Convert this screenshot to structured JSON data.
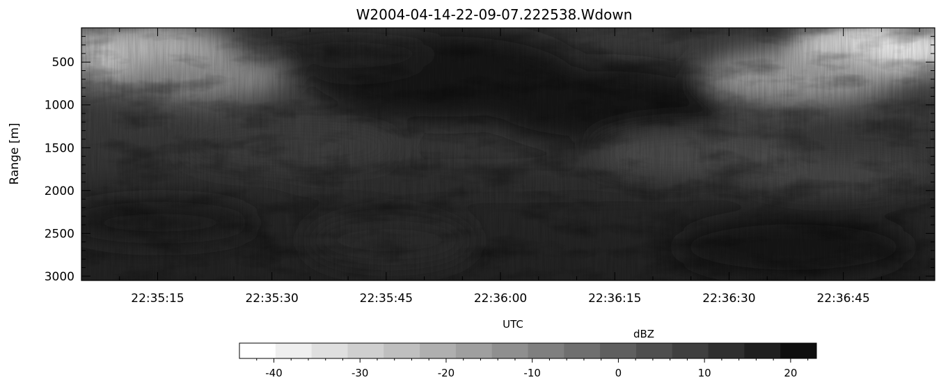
{
  "chart_data": {
    "type": "heatmap",
    "title": "W2004-04-14-22-09-07.222538.Wdown",
    "xlabel": "UTC",
    "ylabel": "Range [m]",
    "x_ticks": [
      "22:35:15",
      "22:35:30",
      "22:35:45",
      "22:36:00",
      "22:36:15",
      "22:36:30",
      "22:36:45"
    ],
    "x_tick_seconds": [
      15,
      30,
      45,
      60,
      75,
      90,
      105
    ],
    "x_range_seconds": [
      5,
      117
    ],
    "y_ticks": [
      500,
      1000,
      1500,
      2000,
      2500,
      3000
    ],
    "y_range": [
      100,
      3050
    ],
    "y_inverted": true,
    "colorbar": {
      "label": "dBZ",
      "range": [
        -44,
        23
      ],
      "ticks": [
        -40,
        -30,
        -20,
        -10,
        0,
        10,
        20
      ],
      "levels": 16,
      "colors": [
        "#ffffff",
        "#efefef",
        "#dfdfdf",
        "#cfcfcf",
        "#bfbfbf",
        "#afafaf",
        "#9f9f9f",
        "#8f8f8f",
        "#7f7f7f",
        "#6f6f6f",
        "#5f5f5f",
        "#4f4f4f",
        "#3f3f3f",
        "#2f2f2f",
        "#1f1f1f",
        "#0f0f0f"
      ]
    }
  }
}
